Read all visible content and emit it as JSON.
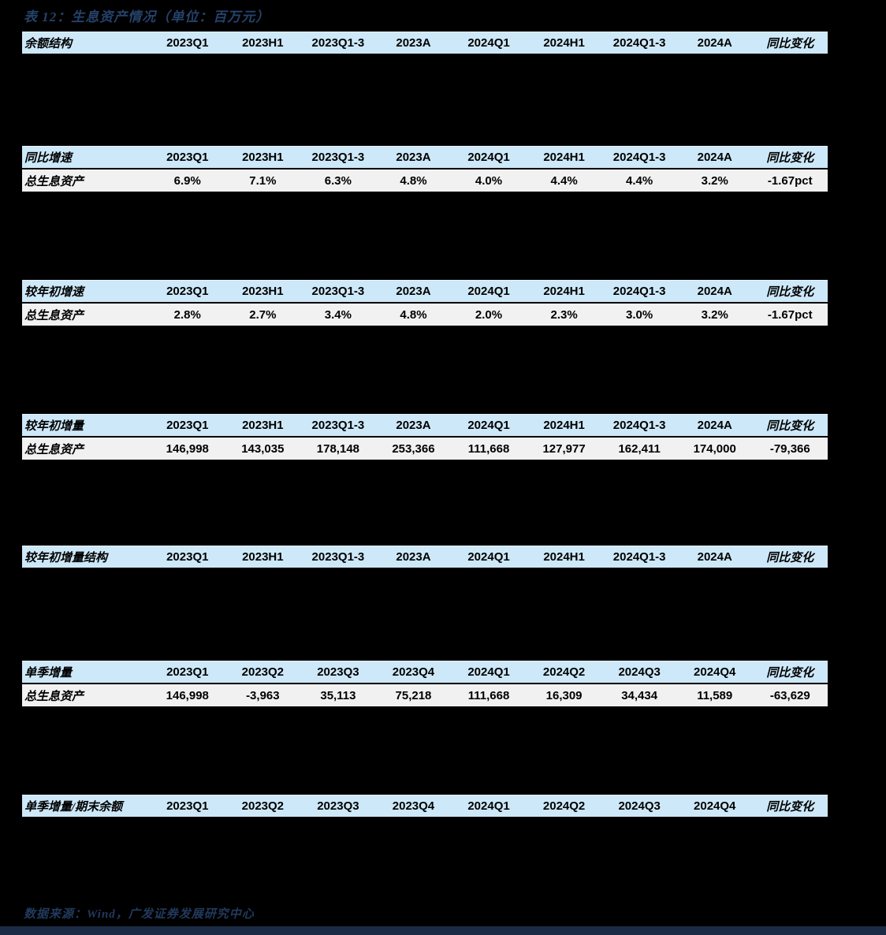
{
  "page": {
    "title": "表 12：生息资产情况（单位：百万元）",
    "source": "数据来源：Wind，广发证券发展研究中心"
  },
  "colors": {
    "page_bg": "#000000",
    "header_row_bg": "#cde8f8",
    "data_row_bg": "#f1f1f1",
    "title_text": "#24426b",
    "source_text": "#22395c",
    "footer_bar": "#1b2b45",
    "cell_text": "#000000"
  },
  "sections": [
    {
      "label": "余额结构",
      "columns": [
        "2023Q1",
        "2023H1",
        "2023Q1-3",
        "2023A",
        "2024Q1",
        "2024H1",
        "2024Q1-3",
        "2024A",
        "同比变化"
      ],
      "rows": []
    },
    {
      "label": "同比增速",
      "columns": [
        "2023Q1",
        "2023H1",
        "2023Q1-3",
        "2023A",
        "2024Q1",
        "2024H1",
        "2024Q1-3",
        "2024A",
        "同比变化"
      ],
      "rows": [
        {
          "label": "总生息资产",
          "values": [
            "6.9%",
            "7.1%",
            "6.3%",
            "4.8%",
            "4.0%",
            "4.4%",
            "4.4%",
            "3.2%",
            "-1.67pct"
          ]
        }
      ]
    },
    {
      "label": "较年初增速",
      "columns": [
        "2023Q1",
        "2023H1",
        "2023Q1-3",
        "2023A",
        "2024Q1",
        "2024H1",
        "2024Q1-3",
        "2024A",
        "同比变化"
      ],
      "rows": [
        {
          "label": "总生息资产",
          "values": [
            "2.8%",
            "2.7%",
            "3.4%",
            "4.8%",
            "2.0%",
            "2.3%",
            "3.0%",
            "3.2%",
            "-1.67pct"
          ]
        }
      ]
    },
    {
      "label": "较年初增量",
      "columns": [
        "2023Q1",
        "2023H1",
        "2023Q1-3",
        "2023A",
        "2024Q1",
        "2024H1",
        "2024Q1-3",
        "2024A",
        "同比变化"
      ],
      "rows": [
        {
          "label": "总生息资产",
          "values": [
            "146,998",
            "143,035",
            "178,148",
            "253,366",
            "111,668",
            "127,977",
            "162,411",
            "174,000",
            "-79,366"
          ]
        }
      ]
    },
    {
      "label": "较年初增量结构",
      "columns": [
        "2023Q1",
        "2023H1",
        "2023Q1-3",
        "2023A",
        "2024Q1",
        "2024H1",
        "2024Q1-3",
        "2024A",
        "同比变化"
      ],
      "rows": []
    },
    {
      "label": "单季增量",
      "columns": [
        "2023Q1",
        "2023Q2",
        "2023Q3",
        "2023Q4",
        "2024Q1",
        "2024Q2",
        "2024Q3",
        "2024Q4",
        "同比变化"
      ],
      "rows": [
        {
          "label": "总生息资产",
          "values": [
            "146,998",
            "-3,963",
            "35,113",
            "75,218",
            "111,668",
            "16,309",
            "34,434",
            "11,589",
            "-63,629"
          ]
        }
      ]
    },
    {
      "label": "单季增量/期末余额",
      "columns": [
        "2023Q1",
        "2023Q2",
        "2023Q3",
        "2023Q4",
        "2024Q1",
        "2024Q2",
        "2024Q3",
        "2024Q4",
        "同比变化"
      ],
      "rows": []
    }
  ]
}
